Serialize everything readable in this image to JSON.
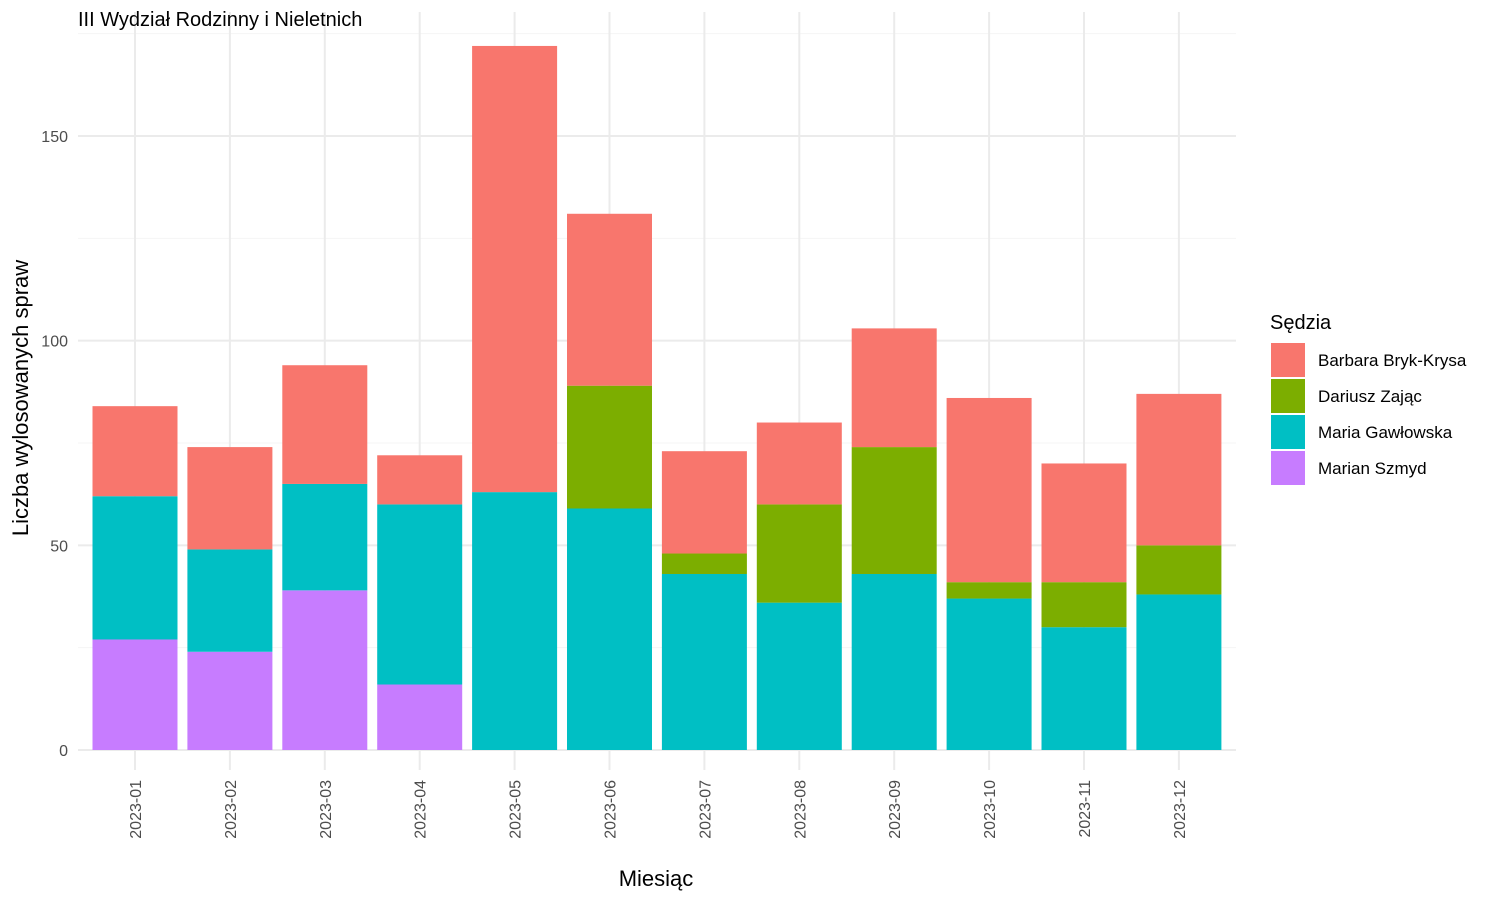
{
  "chart_data": {
    "type": "bar",
    "stacked": true,
    "title": "III Wydział Rodzinny i Nieletnich",
    "xlabel": "Miesiąc",
    "ylabel": "Liczba wylosowanych spraw",
    "ylim": [
      0,
      180
    ],
    "yticks": [
      0,
      50,
      100,
      150
    ],
    "grid": true,
    "legend_position": "right",
    "legend_title": "Sędzia",
    "categories": [
      "2023-01",
      "2023-02",
      "2023-03",
      "2023-04",
      "2023-05",
      "2023-06",
      "2023-07",
      "2023-08",
      "2023-09",
      "2023-10",
      "2023-11",
      "2023-12"
    ],
    "stack_order": [
      "Marian Szmyd",
      "Maria Gawłowska",
      "Dariusz Zając",
      "Barbara Bryk-Krysa"
    ],
    "series": [
      {
        "name": "Barbara Bryk-Krysa",
        "color": "#F8766D",
        "values": [
          22,
          25,
          29,
          12,
          109,
          42,
          25,
          20,
          29,
          45,
          29,
          37
        ]
      },
      {
        "name": "Dariusz Zając",
        "color": "#7CAE00",
        "values": [
          0,
          0,
          0,
          0,
          0,
          30,
          5,
          24,
          31,
          4,
          11,
          12
        ]
      },
      {
        "name": "Maria Gawłowska",
        "color": "#00BFC4",
        "values": [
          35,
          25,
          26,
          44,
          63,
          59,
          43,
          36,
          43,
          37,
          30,
          38
        ]
      },
      {
        "name": "Marian Szmyd",
        "color": "#C77CFF",
        "values": [
          27,
          24,
          39,
          16,
          0,
          0,
          0,
          0,
          0,
          0,
          0,
          0
        ]
      }
    ]
  }
}
